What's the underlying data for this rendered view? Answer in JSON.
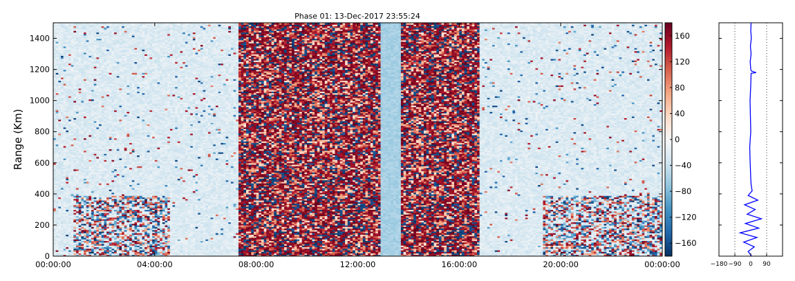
{
  "chart_data": [
    {
      "type": "heatmap",
      "title": "Phase 01: 13-Dec-2017 23:55:24",
      "xlabel": "",
      "ylabel": "Range (Km)",
      "x_tick_labels": [
        "00:00:00",
        "04:00:00",
        "08:00:00",
        "12:00:00",
        "16:00:00",
        "20:00:00",
        "00:00:00"
      ],
      "x_hours": [
        0,
        4,
        8,
        12,
        16,
        20,
        24
      ],
      "xlim_hours": [
        0,
        24
      ],
      "ylim": [
        0,
        1500
      ],
      "y_ticks": [
        0,
        200,
        400,
        600,
        800,
        1000,
        1200,
        1400
      ],
      "colorbar": {
        "cmap": "RdBu_r",
        "vmin": -180,
        "vmax": 180,
        "ticks": [
          -160,
          -120,
          -80,
          -40,
          0,
          40,
          80,
          120,
          160
        ],
        "colors": [
          "#053061",
          "#2166ac",
          "#4393c3",
          "#92c5de",
          "#d1e5f0",
          "#f7f7f7",
          "#fddbc7",
          "#f4a582",
          "#d6604d",
          "#b2182b",
          "#67001f"
        ]
      },
      "noisy_bands_hours": [
        [
          7.3,
          12.9
        ],
        [
          13.7,
          16.8
        ]
      ],
      "quiet_band_hours": [
        12.9,
        13.7
      ],
      "lower_noise_patches": [
        {
          "hours": [
            0.8,
            4.6
          ],
          "range_max": 390
        },
        {
          "hours": [
            19.3,
            24
          ],
          "range_max": 390
        }
      ],
      "grid": false
    },
    {
      "type": "line",
      "title": "",
      "xlim": [
        -180,
        180
      ],
      "x_ticks": [
        -180,
        -90,
        0,
        90
      ],
      "x_tick_labels": [
        "−180",
        "−90",
        "0",
        "90"
      ],
      "reference_lines": [
        -90,
        90
      ],
      "ylim": [
        0,
        1500
      ],
      "y_ticks": [
        0,
        200,
        400,
        600,
        800,
        1000,
        1200,
        1400
      ],
      "series_color": "#0000ff",
      "profile": {
        "range": [
          0,
          30,
          60,
          90,
          120,
          150,
          180,
          210,
          240,
          270,
          300,
          330,
          360,
          390,
          420,
          460,
          500,
          560,
          620,
          700,
          800,
          900,
          1000,
          1100,
          1175,
          1180,
          1190,
          1200,
          1250,
          1300,
          1350,
          1400,
          1450,
          1500
        ],
        "phase": [
          5,
          -15,
          20,
          -40,
          35,
          -60,
          45,
          -30,
          60,
          -20,
          25,
          -35,
          40,
          -15,
          8,
          2,
          0,
          -2,
          -4,
          -6,
          0,
          -2,
          -4,
          0,
          2,
          30,
          4,
          0,
          -3,
          2,
          -2,
          3,
          0,
          2
        ]
      }
    }
  ]
}
